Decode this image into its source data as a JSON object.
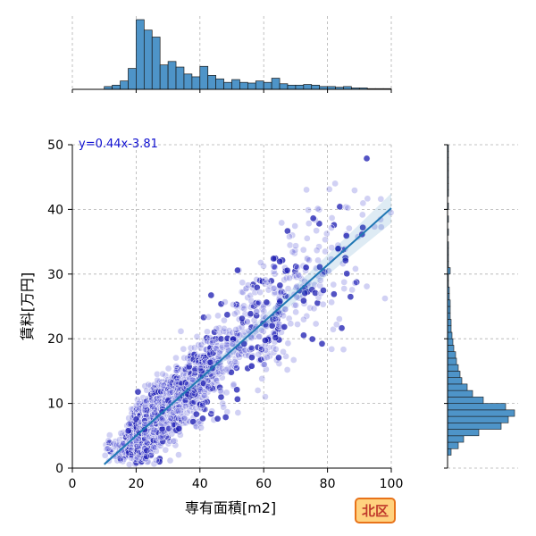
{
  "chart_data": {
    "type": "scatter",
    "xlabel": "専有面積[m2]",
    "ylabel": "賃料[万円]",
    "xlim": [
      0,
      100
    ],
    "ylim": [
      0,
      50
    ],
    "x_ticks": [
      "0",
      "20",
      "40",
      "60",
      "80",
      "100"
    ],
    "y_ticks": [
      "0",
      "10",
      "20",
      "30",
      "40",
      "50"
    ],
    "grid": true,
    "regression": {
      "label": "y=0.44x-3.81",
      "slope": 0.44,
      "intercept": -3.81,
      "x_range": [
        10,
        100
      ],
      "ci_halfwidth_at_ends": [
        0.25,
        2.3
      ]
    },
    "badge": "北区",
    "top_histogram": {
      "bin_width": 2.5,
      "bins_x_start": [
        10,
        12.5,
        15,
        17.5,
        20,
        22.5,
        25,
        27.5,
        30,
        32.5,
        35,
        37.5,
        40,
        42.5,
        45,
        47.5,
        50,
        52.5,
        55,
        57.5,
        60,
        62.5,
        65,
        67.5,
        70,
        72.5,
        75,
        77.5,
        80,
        82.5,
        85,
        87.5,
        90,
        92.5,
        95,
        97.5
      ],
      "counts": [
        4,
        6,
        12,
        30,
        100,
        85,
        75,
        35,
        40,
        32,
        22,
        18,
        33,
        20,
        15,
        10,
        14,
        10,
        9,
        12,
        10,
        16,
        8,
        6,
        6,
        7,
        6,
        4,
        4,
        3,
        4,
        2,
        2,
        1,
        1,
        1
      ]
    },
    "right_histogram": {
      "bin_width": 1,
      "bins_y_start": [
        2,
        3,
        4,
        5,
        6,
        7,
        8,
        9,
        10,
        11,
        12,
        13,
        14,
        15,
        16,
        17,
        18,
        19,
        20,
        21,
        22,
        23,
        24,
        25,
        26,
        27,
        28,
        29,
        30,
        31,
        32,
        33,
        34,
        35,
        36,
        37,
        38,
        39,
        40,
        41,
        42,
        43,
        44,
        45,
        46,
        47,
        48,
        49
      ],
      "counts": [
        4,
        12,
        18,
        35,
        60,
        68,
        75,
        65,
        40,
        28,
        22,
        16,
        14,
        12,
        10,
        9,
        7,
        6,
        5,
        4,
        4,
        3,
        3,
        3,
        2,
        2,
        1,
        1,
        3,
        1,
        1,
        1,
        1,
        0,
        1,
        0,
        1,
        0,
        1,
        0,
        1,
        1,
        1,
        1,
        1,
        1,
        1,
        1
      ]
    }
  }
}
